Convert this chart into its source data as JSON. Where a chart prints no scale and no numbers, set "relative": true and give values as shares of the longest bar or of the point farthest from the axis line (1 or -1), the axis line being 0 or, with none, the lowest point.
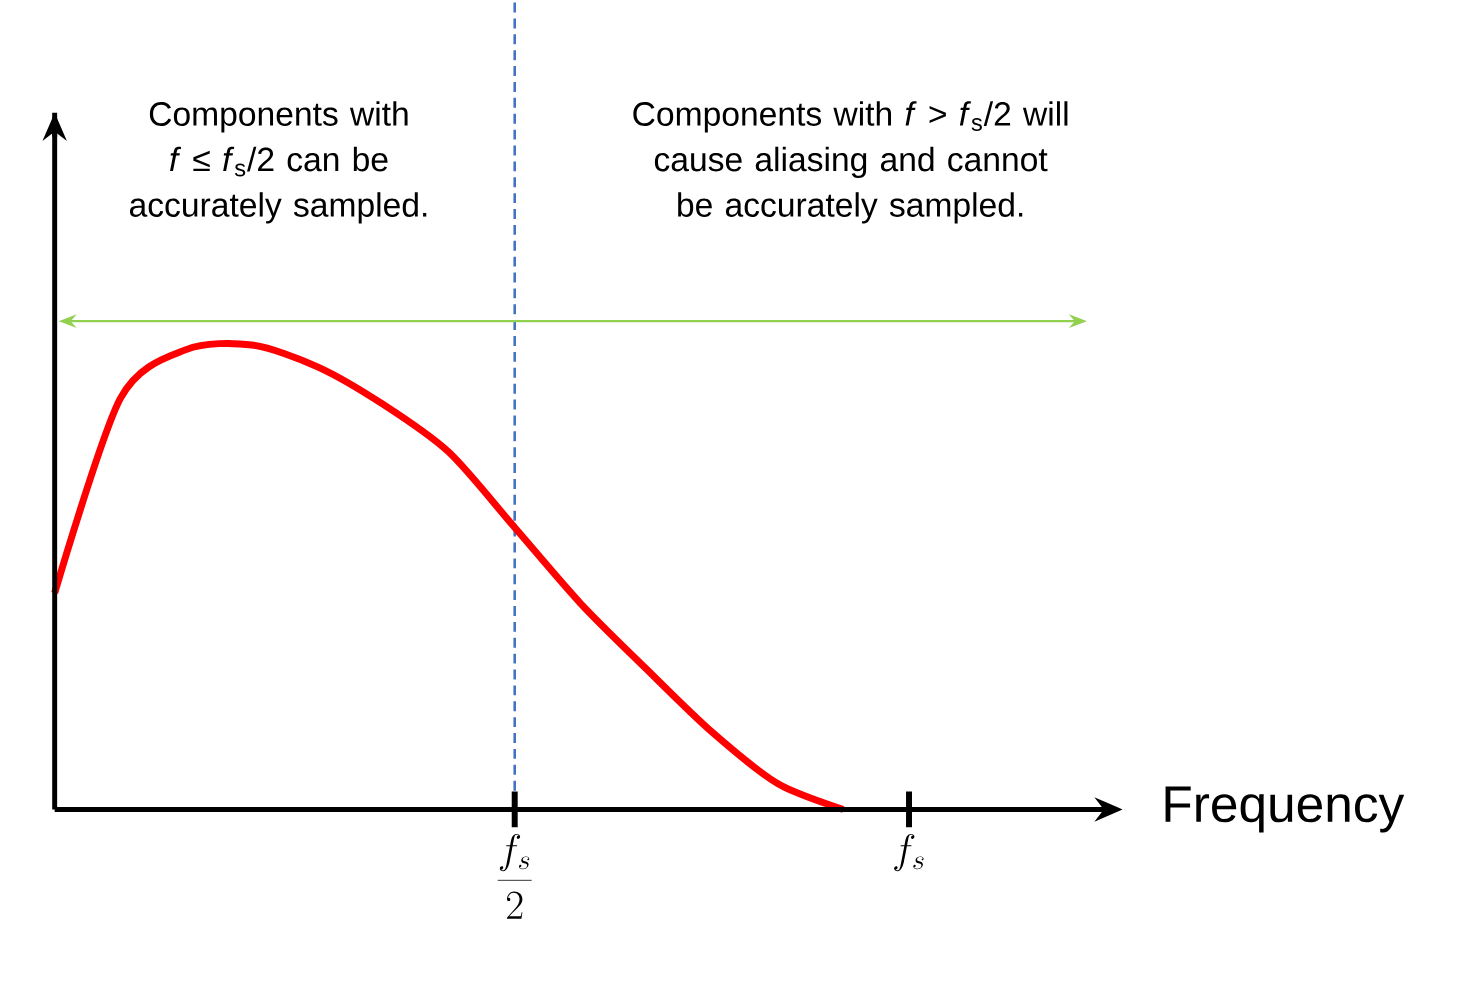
{
  "chart_data": {
    "type": "line",
    "relative": true,
    "categories": [
      null,
      null,
      null,
      null,
      null,
      null,
      null,
      "\\frac{f_s}{2}",
      null,
      null,
      null,
      null,
      null,
      "f_s",
      null,
      null,
      null
    ],
    "values": [
      0.466,
      0.885,
      0.99,
      1,
      0.953,
      0.872,
      0.769,
      0.607,
      0.444,
      0.303,
      0.167,
      0.056,
      0,
      null,
      null,
      null,
      null
    ],
    "color": "#ff0000",
    "xlabel": "Frequency",
    "ref_lines": [
      {
        "axis": "x",
        "value": "\\frac{f_s}{2}",
        "color": "#4472c4",
        "line_style": "dashed"
      }
    ],
    "annotations": [
      "Components with *f* ≤ *f*$_{s}$/2 can be accurately sampled.",
      "Components with *f* > *f*$_{s}$/2 will cause aliasing and cannot be accurately sampled."
    ]
  }
}
